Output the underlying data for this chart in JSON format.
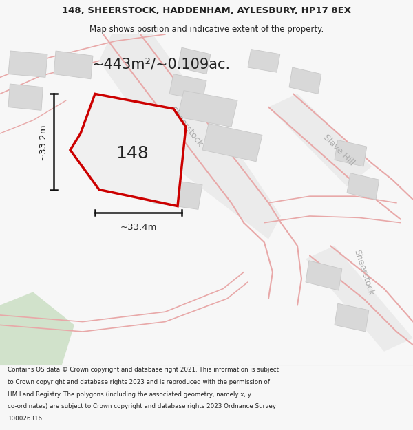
{
  "title_line1": "148, SHEERSTOCK, HADDENHAM, AYLESBURY, HP17 8EX",
  "title_line2": "Map shows position and indicative extent of the property.",
  "area_label": "~443m²/~0.109ac.",
  "property_number": "148",
  "dim_height": "~33.2m",
  "dim_width": "~33.4m",
  "footer_lines": [
    "Contains OS data © Crown copyright and database right 2021. This information is subject",
    "to Crown copyright and database rights 2023 and is reproduced with the permission of",
    "HM Land Registry. The polygons (including the associated geometry, namely x, y",
    "co-ordinates) are subject to Crown copyright and database rights 2023 Ordnance Survey",
    "100026316."
  ],
  "bg_color": "#f7f7f7",
  "map_bg": "#ffffff",
  "road_fill": "#ebebeb",
  "road_outline": "#e8a8a8",
  "building_color": "#d8d8d8",
  "building_edge": "#c8c8c8",
  "property_fill": "#f0f0f0",
  "property_outline": "#cc0000",
  "dim_line_color": "#111111",
  "text_color": "#222222",
  "road_label_color": "#aaaaaa",
  "green_color": "#c8ddc0"
}
